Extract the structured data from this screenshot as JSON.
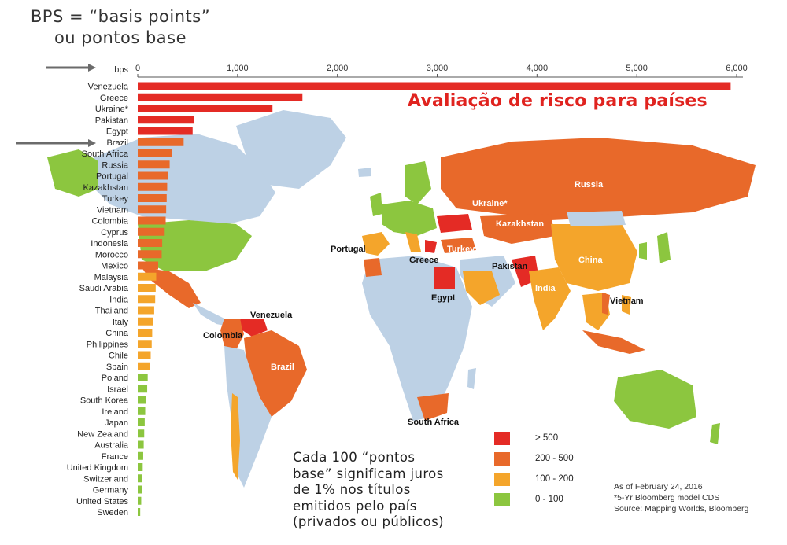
{
  "header": {
    "bps_note_line1": "BPS = “basis points”",
    "bps_note_line2": "ou pontos base",
    "title": "Avaliação de risco para países"
  },
  "note": {
    "lines": [
      "Cada 100 “pontos",
      "base” significam juros",
      "de 1% nos títulos",
      "emitidos pelo país",
      "(privados ou públicos)"
    ]
  },
  "source": {
    "lines": [
      "As of February 24, 2016",
      "*5-Yr Bloomberg model CDS",
      "Source: Mapping Worlds, Bloomberg"
    ]
  },
  "colors": {
    "over_500": "#e42b25",
    "r200_500": "#e8692a",
    "r100_200": "#f4a52b",
    "r0_100": "#8cc63f",
    "land": "#bdd1e5",
    "axis": "#555555",
    "arrow": "#6b6b6b"
  },
  "legend": [
    {
      "label": "> 500",
      "color": "#e42b25"
    },
    {
      "label": "200 - 500",
      "color": "#e8692a"
    },
    {
      "label": "100 - 200",
      "color": "#f4a52b"
    },
    {
      "label": "0 - 100",
      "color": "#8cc63f"
    }
  ],
  "chart_data": {
    "type": "bar",
    "orientation": "horizontal",
    "title": "Avaliação de risco para países",
    "xlabel": "bps",
    "xlim": [
      0,
      6000
    ],
    "xticks": [
      "0",
      "1,000",
      "2,000",
      "3,000",
      "4,000",
      "5,000",
      "6,000"
    ],
    "categories": [
      "Venezuela",
      "Greece",
      "Ukraine*",
      "Pakistan",
      "Egypt",
      "Brazil",
      "South Africa",
      "Russia",
      "Portugal",
      "Kazakhstan",
      "Turkey",
      "Vietnam",
      "Colombia",
      "Cyprus",
      "Indonesia",
      "Morocco",
      "Mexico",
      "Malaysia",
      "Saudi Arabia",
      "India",
      "Thailand",
      "Italy",
      "China",
      "Philippines",
      "Chile",
      "Spain",
      "Poland",
      "Israel",
      "South Korea",
      "Ireland",
      "Japan",
      "New Zealand",
      "Australia",
      "France",
      "United Kingdom",
      "Switzerland",
      "Germany",
      "United States",
      "Sweden"
    ],
    "values": [
      5940,
      1650,
      1350,
      560,
      550,
      460,
      345,
      320,
      305,
      295,
      290,
      285,
      280,
      270,
      245,
      240,
      205,
      185,
      180,
      175,
      165,
      155,
      145,
      140,
      130,
      125,
      100,
      95,
      85,
      75,
      70,
      65,
      60,
      55,
      50,
      45,
      40,
      35,
      25
    ],
    "map_labels": [
      "Russia",
      "Ukraine*",
      "Kazakhstan",
      "Portugal",
      "Greece",
      "Turkey",
      "Pakistan",
      "China",
      "Egypt",
      "India",
      "Vietnam",
      "Venezuela",
      "Colombia",
      "Brazil",
      "South Africa"
    ]
  }
}
